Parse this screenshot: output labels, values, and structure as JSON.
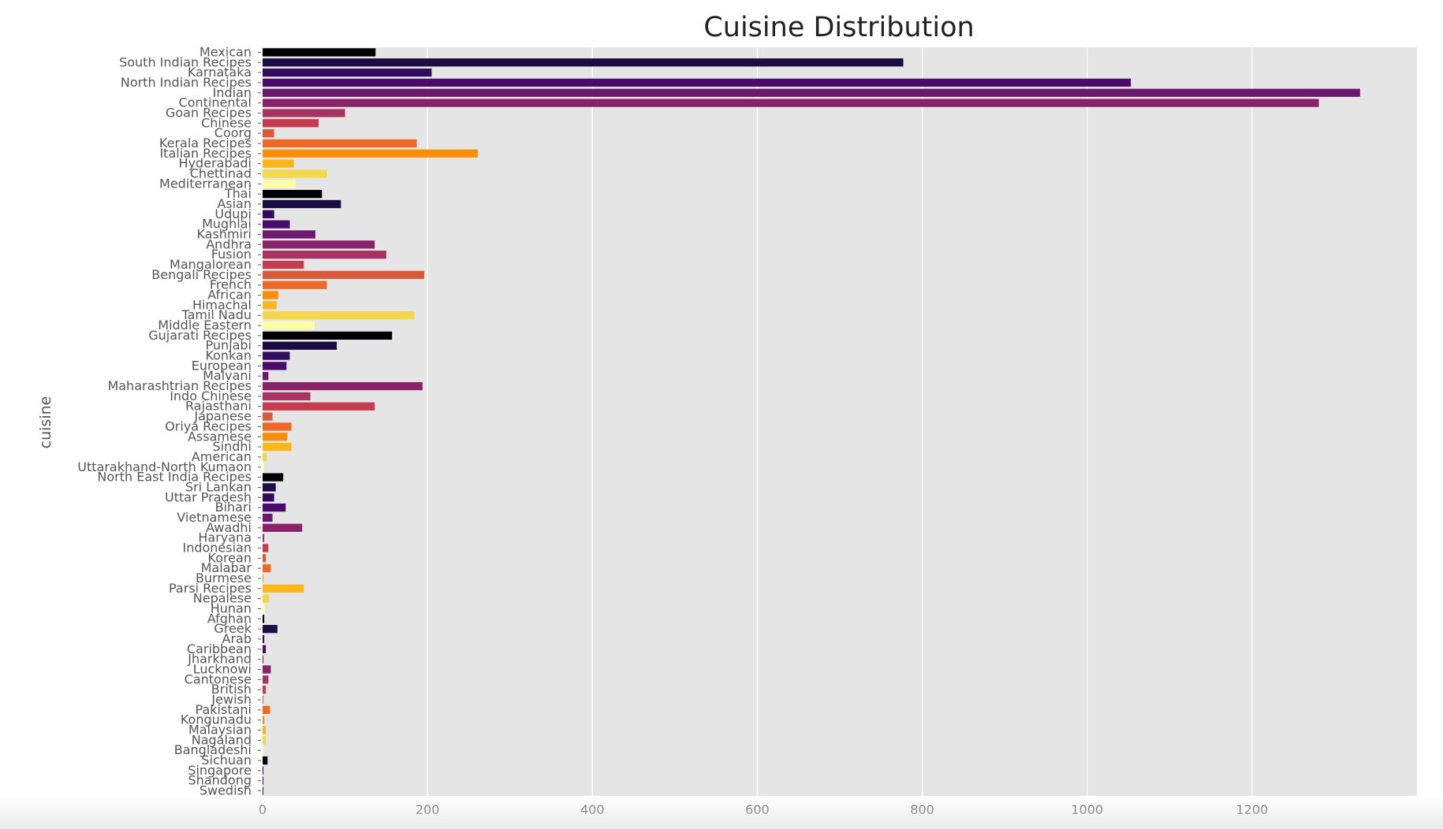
{
  "chart_data": {
    "type": "bar",
    "orientation": "horizontal",
    "title": "Cuisine Distribution",
    "ylabel": "cuisine",
    "xlabel": "",
    "xlim": [
      0,
      1400
    ],
    "x_ticks": [
      "0",
      "200",
      "400",
      "600",
      "800",
      "1000",
      "1200"
    ],
    "grid": true,
    "legend": "none",
    "palette": [
      "#000004",
      "#1b0c41",
      "#320a5e",
      "#4a0c6b",
      "#6b186e",
      "#8a226a",
      "#a83362",
      "#c43c4e",
      "#d95a3a",
      "#ed6925",
      "#f98e09",
      "#fbb61a",
      "#f2d74a",
      "#fcffa4"
    ],
    "categories": [
      "Mexican",
      "South Indian Recipes",
      "Karnataka",
      "North Indian Recipes",
      "Indian",
      "Continental",
      "Goan Recipes",
      "Chinese",
      "Coorg",
      "Kerala Recipes",
      "Italian Recipes",
      "Hyderabadi",
      "Chettinad",
      "Mediterranean",
      "Thai",
      "Asian",
      "Udupi",
      "Mughlai",
      "Kashmiri",
      "Andhra",
      "Fusion",
      "Mangalorean",
      "Bengali Recipes",
      "French",
      "African",
      "Himachal",
      "Tamil Nadu",
      "Middle Eastern",
      "Gujarati Recipes",
      "Punjabi",
      "Konkan",
      "European",
      "Malvani",
      "Maharashtrian Recipes",
      "Indo Chinese",
      "Rajasthani",
      "Japanese",
      "Oriya Recipes",
      "Assamese",
      "Sindhi",
      "American",
      "Uttarakhand-North Kumaon",
      "North East India Recipes",
      "Sri Lankan",
      "Uttar Pradesh",
      "Bihari",
      "Vietnamese",
      "Awadhi",
      "Haryana",
      "Indonesian",
      "Korean",
      "Malabar",
      "Burmese",
      "Parsi Recipes",
      "Nepalese",
      "Hunan",
      "Afghan",
      "Greek",
      "Arab",
      "Caribbean",
      "Jharkhand",
      "Lucknowi",
      "Cantonese",
      "British",
      "Jewish",
      "Pakistani",
      "Kongunadu",
      "Malaysian",
      "Nagaland",
      "Bangladeshi",
      "Sichuan",
      "Singapore",
      "Shandong",
      "Swedish"
    ],
    "values": [
      137,
      777,
      205,
      1053,
      1331,
      1281,
      100,
      68,
      14,
      187,
      261,
      38,
      78,
      40,
      72,
      95,
      14,
      33,
      64,
      136,
      150,
      50,
      196,
      78,
      19,
      17,
      184,
      63,
      157,
      90,
      33,
      29,
      7,
      194,
      58,
      136,
      12,
      35,
      30,
      35,
      5,
      2,
      25,
      16,
      14,
      28,
      12,
      48,
      2,
      7,
      4,
      10,
      1,
      50,
      8,
      3,
      2,
      18,
      2,
      4,
      1,
      10,
      7,
      4,
      1,
      9,
      2,
      4,
      4,
      1,
      6,
      1,
      1,
      1
    ]
  }
}
